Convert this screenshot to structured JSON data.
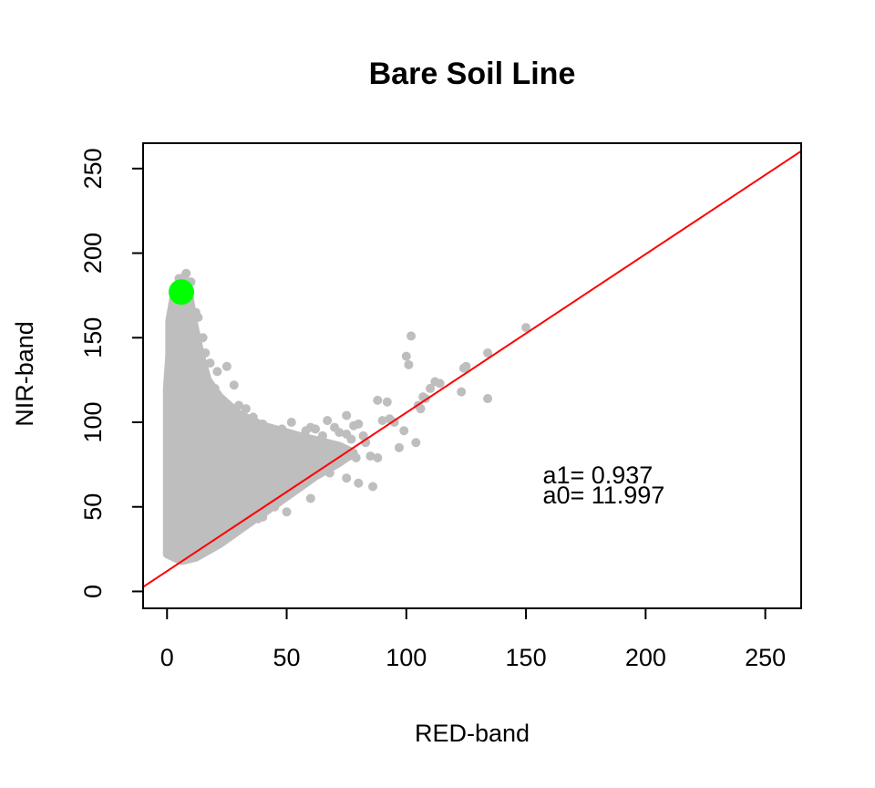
{
  "chart_data": {
    "type": "scatter",
    "title": "Bare Soil Line",
    "xlabel": "RED-band",
    "ylabel": "NIR-band",
    "xlim": [
      -10,
      265
    ],
    "ylim": [
      -10,
      265
    ],
    "x_ticks": [
      0,
      50,
      100,
      150,
      200,
      250
    ],
    "y_ticks": [
      0,
      50,
      100,
      150,
      200,
      250
    ],
    "grid": false,
    "point_color": "#bebebe",
    "line_color": "#ff0000",
    "highlight_color": "#00ff00",
    "regression": {
      "a1": 0.937,
      "a0": 11.997
    },
    "highlight_point": {
      "x": 6,
      "y": 177
    },
    "cluster_outline": [
      [
        0,
        22
      ],
      [
        0,
        35
      ],
      [
        0,
        55
      ],
      [
        0,
        80
      ],
      [
        0,
        100
      ],
      [
        0,
        120
      ],
      [
        1,
        140
      ],
      [
        1,
        160
      ],
      [
        3,
        176
      ],
      [
        7,
        186
      ],
      [
        9,
        178
      ],
      [
        11,
        160
      ],
      [
        14,
        140
      ],
      [
        17,
        125
      ],
      [
        22,
        115
      ],
      [
        30,
        105
      ],
      [
        40,
        98
      ],
      [
        55,
        92
      ],
      [
        72,
        86
      ],
      [
        78,
        82
      ],
      [
        72,
        76
      ],
      [
        62,
        68
      ],
      [
        52,
        58
      ],
      [
        42,
        48
      ],
      [
        32,
        38
      ],
      [
        22,
        28
      ],
      [
        12,
        20
      ],
      [
        6,
        18
      ]
    ],
    "scatter_points": [
      [
        5,
        185
      ],
      [
        8,
        188
      ],
      [
        10,
        183
      ],
      [
        12,
        165
      ],
      [
        13,
        162
      ],
      [
        15,
        150
      ],
      [
        16,
        141
      ],
      [
        18,
        135
      ],
      [
        21,
        130
      ],
      [
        25,
        133
      ],
      [
        20,
        120
      ],
      [
        28,
        122
      ],
      [
        30,
        110
      ],
      [
        33,
        108
      ],
      [
        36,
        103
      ],
      [
        40,
        99
      ],
      [
        48,
        96
      ],
      [
        52,
        100
      ],
      [
        58,
        95
      ],
      [
        60,
        97
      ],
      [
        62,
        96
      ],
      [
        65,
        92
      ],
      [
        67,
        101
      ],
      [
        70,
        97
      ],
      [
        72,
        94
      ],
      [
        75,
        93
      ],
      [
        75,
        104
      ],
      [
        77,
        90
      ],
      [
        78,
        98
      ],
      [
        80,
        99
      ],
      [
        82,
        92
      ],
      [
        83,
        88
      ],
      [
        85,
        80
      ],
      [
        88,
        113
      ],
      [
        88,
        79
      ],
      [
        90,
        101
      ],
      [
        92,
        112
      ],
      [
        93,
        102
      ],
      [
        95,
        100
      ],
      [
        97,
        85
      ],
      [
        99,
        95
      ],
      [
        100,
        139
      ],
      [
        101,
        134
      ],
      [
        102,
        151
      ],
      [
        104,
        88
      ],
      [
        105,
        110
      ],
      [
        106,
        108
      ],
      [
        107,
        115
      ],
      [
        108,
        114
      ],
      [
        110,
        120
      ],
      [
        112,
        124
      ],
      [
        114,
        123
      ],
      [
        123,
        118
      ],
      [
        124,
        132
      ],
      [
        125,
        133
      ],
      [
        134,
        141
      ],
      [
        134,
        114
      ],
      [
        150,
        156
      ],
      [
        86,
        62
      ],
      [
        80,
        64
      ],
      [
        75,
        67
      ],
      [
        68,
        70
      ],
      [
        65,
        72
      ],
      [
        62,
        75
      ],
      [
        58,
        71
      ],
      [
        55,
        74
      ],
      [
        50,
        77
      ],
      [
        45,
        78
      ],
      [
        60,
        55
      ],
      [
        40,
        58
      ],
      [
        45,
        50
      ],
      [
        35,
        45
      ],
      [
        40,
        44
      ],
      [
        30,
        40
      ],
      [
        25,
        35
      ],
      [
        20,
        30
      ],
      [
        50,
        47
      ],
      [
        38,
        43
      ],
      [
        42,
        84
      ],
      [
        45,
        88
      ],
      [
        55,
        84
      ],
      [
        57,
        86
      ],
      [
        63,
        83
      ],
      [
        66,
        85
      ],
      [
        70,
        85
      ],
      [
        73,
        82
      ],
      [
        76,
        80
      ],
      [
        79,
        79
      ],
      [
        12,
        25
      ],
      [
        10,
        20
      ],
      [
        8,
        19
      ],
      [
        15,
        23
      ]
    ],
    "annotations": [
      {
        "text": "a1= 0.937",
        "x": 157,
        "y": 64
      },
      {
        "text": "a0= 11.997",
        "x": 157,
        "y": 52
      }
    ]
  }
}
